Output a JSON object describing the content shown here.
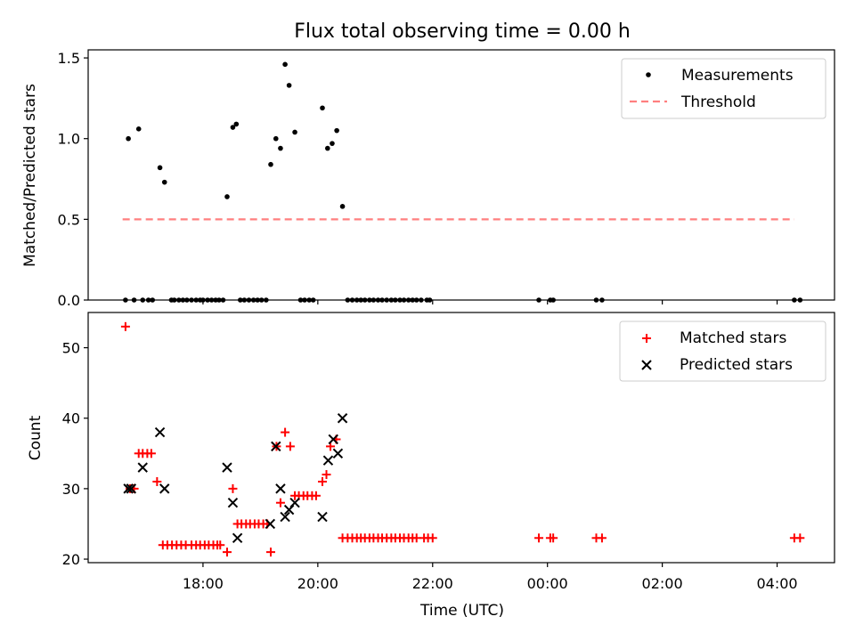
{
  "title": "Flux total observing time = 0.00 h",
  "chart_data": [
    {
      "type": "scatter",
      "title": "Flux total observing time = 0.00 h",
      "xlabel": "",
      "ylabel": "Matched/Predicted stars",
      "ylim": [
        0,
        1.55
      ],
      "xlim": [
        16.0,
        29.0
      ],
      "yticks": [
        {
          "v": 0.0,
          "label": "0.0"
        },
        {
          "v": 0.5,
          "label": "0.5"
        },
        {
          "v": 1.0,
          "label": "1.0"
        },
        {
          "v": 1.5,
          "label": "1.5"
        }
      ],
      "legend": {
        "placement": "top-right",
        "entries": [
          "Measurements",
          "Threshold"
        ]
      },
      "threshold": {
        "name": "Threshold",
        "value": 0.5,
        "x_range": [
          16.6,
          28.3
        ],
        "color": "#ff7f7f"
      },
      "series": [
        {
          "name": "Measurements",
          "color": "#000000",
          "points": [
            [
              16.65,
              0
            ],
            [
              16.7,
              1.0
            ],
            [
              16.8,
              0
            ],
            [
              16.88,
              1.06
            ],
            [
              16.95,
              0
            ],
            [
              17.05,
              0
            ],
            [
              17.12,
              0
            ],
            [
              17.25,
              0.82
            ],
            [
              17.33,
              0.73
            ],
            [
              17.45,
              0
            ],
            [
              17.5,
              0
            ],
            [
              17.58,
              0
            ],
            [
              17.65,
              0
            ],
            [
              17.72,
              0
            ],
            [
              17.8,
              0
            ],
            [
              17.88,
              0
            ],
            [
              17.95,
              0
            ],
            [
              18.0,
              0
            ],
            [
              18.08,
              0
            ],
            [
              18.15,
              0
            ],
            [
              18.22,
              0
            ],
            [
              18.28,
              0
            ],
            [
              18.35,
              0
            ],
            [
              18.42,
              0.64
            ],
            [
              18.52,
              1.07
            ],
            [
              18.58,
              1.09
            ],
            [
              18.65,
              0
            ],
            [
              18.72,
              0
            ],
            [
              18.8,
              0
            ],
            [
              18.88,
              0
            ],
            [
              18.95,
              0
            ],
            [
              19.02,
              0
            ],
            [
              19.1,
              0
            ],
            [
              19.18,
              0.84
            ],
            [
              19.27,
              1.0
            ],
            [
              19.35,
              0.94
            ],
            [
              19.43,
              1.46
            ],
            [
              19.5,
              1.33
            ],
            [
              19.6,
              1.04
            ],
            [
              19.7,
              0
            ],
            [
              19.77,
              0
            ],
            [
              19.85,
              0
            ],
            [
              19.92,
              0
            ],
            [
              20.08,
              1.19
            ],
            [
              20.17,
              0.94
            ],
            [
              20.25,
              0.97
            ],
            [
              20.33,
              1.05
            ],
            [
              20.43,
              0.58
            ],
            [
              20.52,
              0
            ],
            [
              20.6,
              0
            ],
            [
              20.68,
              0
            ],
            [
              20.75,
              0
            ],
            [
              20.82,
              0
            ],
            [
              20.9,
              0
            ],
            [
              20.97,
              0
            ],
            [
              21.05,
              0
            ],
            [
              21.12,
              0
            ],
            [
              21.2,
              0
            ],
            [
              21.28,
              0
            ],
            [
              21.35,
              0
            ],
            [
              21.43,
              0
            ],
            [
              21.5,
              0
            ],
            [
              21.58,
              0
            ],
            [
              21.65,
              0
            ],
            [
              21.72,
              0
            ],
            [
              21.8,
              0
            ],
            [
              21.9,
              0
            ],
            [
              21.95,
              0
            ],
            [
              23.85,
              0
            ],
            [
              24.05,
              0
            ],
            [
              24.1,
              0
            ],
            [
              24.85,
              0
            ],
            [
              24.95,
              0
            ],
            [
              28.3,
              0
            ],
            [
              28.4,
              0
            ]
          ]
        }
      ]
    },
    {
      "type": "scatter",
      "title": "",
      "xlabel": "Time (UTC)",
      "ylabel": "Count",
      "ylim": [
        19.5,
        55.0
      ],
      "xlim": [
        16.0,
        29.0
      ],
      "yticks": [
        {
          "v": 20,
          "label": "20"
        },
        {
          "v": 30,
          "label": "30"
        },
        {
          "v": 40,
          "label": "40"
        },
        {
          "v": 50,
          "label": "50"
        }
      ],
      "xticks": [
        {
          "v": 18,
          "label": "18:00"
        },
        {
          "v": 20,
          "label": "20:00"
        },
        {
          "v": 22,
          "label": "22:00"
        },
        {
          "v": 24,
          "label": "00:00"
        },
        {
          "v": 26,
          "label": "02:00"
        },
        {
          "v": 28,
          "label": "04:00"
        }
      ],
      "legend": {
        "placement": "top-right",
        "entries": [
          "Matched stars",
          "Predicted stars"
        ]
      },
      "series": [
        {
          "name": "Matched stars",
          "marker": "plus",
          "color": "#ff0000",
          "points": [
            [
              16.65,
              53
            ],
            [
              16.73,
              30
            ],
            [
              16.8,
              30
            ],
            [
              16.88,
              35
            ],
            [
              16.95,
              35
            ],
            [
              17.03,
              35
            ],
            [
              17.1,
              35
            ],
            [
              17.2,
              31
            ],
            [
              17.3,
              22
            ],
            [
              17.38,
              22
            ],
            [
              17.46,
              22
            ],
            [
              17.54,
              22
            ],
            [
              17.62,
              22
            ],
            [
              17.7,
              22
            ],
            [
              17.8,
              22
            ],
            [
              17.88,
              22
            ],
            [
              17.95,
              22
            ],
            [
              18.03,
              22
            ],
            [
              18.1,
              22
            ],
            [
              18.18,
              22
            ],
            [
              18.25,
              22
            ],
            [
              18.3,
              22
            ],
            [
              18.42,
              21
            ],
            [
              18.52,
              30
            ],
            [
              18.6,
              25
            ],
            [
              18.67,
              25
            ],
            [
              18.75,
              25
            ],
            [
              18.82,
              25
            ],
            [
              18.9,
              25
            ],
            [
              18.97,
              25
            ],
            [
              19.05,
              25
            ],
            [
              19.12,
              25
            ],
            [
              19.18,
              21
            ],
            [
              19.28,
              36
            ],
            [
              19.35,
              28
            ],
            [
              19.43,
              38
            ],
            [
              19.52,
              36
            ],
            [
              19.6,
              29
            ],
            [
              19.67,
              29
            ],
            [
              19.75,
              29
            ],
            [
              19.82,
              29
            ],
            [
              19.9,
              29
            ],
            [
              19.97,
              29
            ],
            [
              20.08,
              31
            ],
            [
              20.15,
              32
            ],
            [
              20.22,
              36
            ],
            [
              20.32,
              37
            ],
            [
              20.43,
              23
            ],
            [
              20.52,
              23
            ],
            [
              20.6,
              23
            ],
            [
              20.68,
              23
            ],
            [
              20.75,
              23
            ],
            [
              20.82,
              23
            ],
            [
              20.9,
              23
            ],
            [
              20.97,
              23
            ],
            [
              21.05,
              23
            ],
            [
              21.12,
              23
            ],
            [
              21.2,
              23
            ],
            [
              21.28,
              23
            ],
            [
              21.35,
              23
            ],
            [
              21.43,
              23
            ],
            [
              21.5,
              23
            ],
            [
              21.58,
              23
            ],
            [
              21.65,
              23
            ],
            [
              21.72,
              23
            ],
            [
              21.85,
              23
            ],
            [
              21.92,
              23
            ],
            [
              22.0,
              23
            ],
            [
              23.85,
              23
            ],
            [
              24.05,
              23
            ],
            [
              24.1,
              23
            ],
            [
              24.85,
              23
            ],
            [
              24.95,
              23
            ],
            [
              28.3,
              23
            ],
            [
              28.4,
              23
            ]
          ]
        },
        {
          "name": "Predicted stars",
          "marker": "x",
          "color": "#000000",
          "points": [
            [
              16.7,
              30
            ],
            [
              16.75,
              30
            ],
            [
              16.95,
              33
            ],
            [
              17.25,
              38
            ],
            [
              17.33,
              30
            ],
            [
              18.42,
              33
            ],
            [
              18.52,
              28
            ],
            [
              18.6,
              23
            ],
            [
              19.17,
              25
            ],
            [
              19.27,
              36
            ],
            [
              19.35,
              30
            ],
            [
              19.43,
              26
            ],
            [
              19.5,
              27
            ],
            [
              19.6,
              28
            ],
            [
              20.08,
              26
            ],
            [
              20.18,
              34
            ],
            [
              20.27,
              37
            ],
            [
              20.35,
              35
            ],
            [
              20.43,
              40
            ]
          ]
        }
      ]
    }
  ]
}
